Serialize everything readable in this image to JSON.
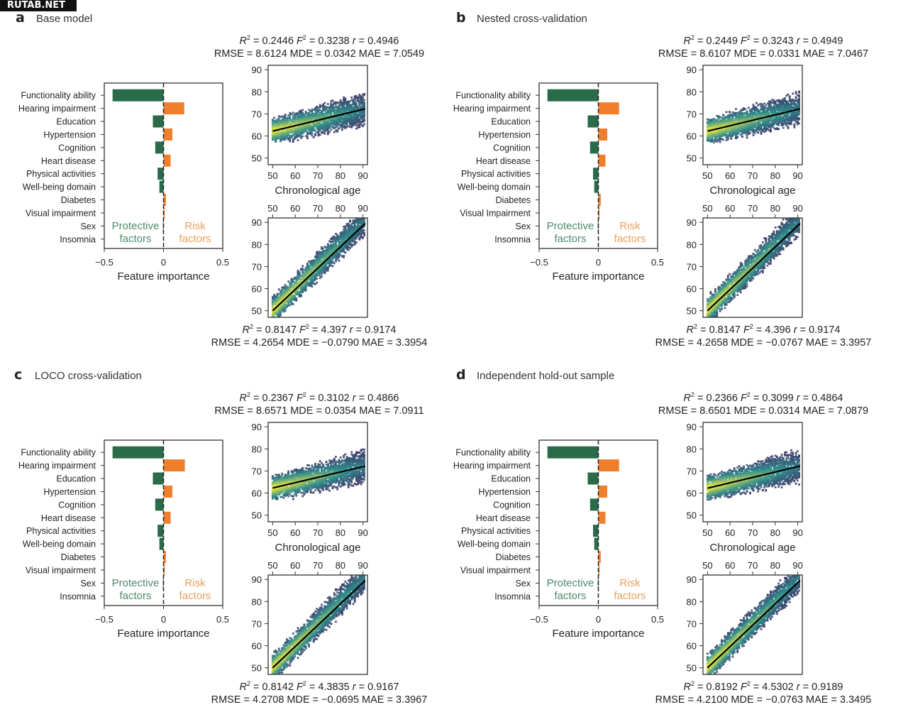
{
  "watermark": "RUTAB.NET",
  "chart_data": [
    {
      "id": "a",
      "letter": "a",
      "title": "Base model",
      "type": "bar",
      "features": [
        "Functionality ability",
        "Hearing impairment",
        "Education",
        "Hypertension",
        "Cognition",
        "Heart disease",
        "Physical activities",
        "Well-being domain",
        "Diabetes",
        "Visual impairment",
        "Sex",
        "Insomnia"
      ],
      "values": [
        -0.43,
        0.175,
        -0.09,
        0.075,
        -0.07,
        0.06,
        -0.05,
        -0.035,
        0.02,
        0.01,
        -0.005,
        0.0
      ],
      "xlim": [
        -0.5,
        0.5
      ],
      "xticks": [
        "−0.5",
        "0",
        "0.5"
      ],
      "xlabel": "Feature importance",
      "annotations": {
        "protective": [
          "Protective",
          "factors"
        ],
        "risk": [
          "Risk",
          "factors"
        ]
      },
      "scatter_top": {
        "type": "scatter",
        "xlabel": "Chronological age",
        "xlim": [
          48,
          92
        ],
        "ylim": [
          47,
          92
        ],
        "xticks": [
          50,
          60,
          70,
          80,
          90
        ],
        "yticks": [
          50,
          60,
          70,
          80,
          90
        ],
        "fit_line": {
          "x": [
            50,
            91
          ],
          "y": [
            62.2,
            72.3
          ]
        },
        "stats_line1": {
          "R2": "0.2446",
          "F2": "0.3238",
          "r": "0.4946"
        },
        "stats_line2": {
          "RMSE": "8.6124",
          "MDE": "0.0342",
          "MAE": "7.0549"
        }
      },
      "scatter_bottom": {
        "type": "scatter",
        "xlim": [
          48,
          92
        ],
        "ylim": [
          47,
          92
        ],
        "xticks": [
          50,
          60,
          70,
          80,
          90
        ],
        "yticks": [
          50,
          60,
          70,
          80,
          90
        ],
        "fit_line": {
          "x": [
            50,
            91
          ],
          "y": [
            50,
            89.5
          ]
        },
        "stats_line1": {
          "R2": "0.8147",
          "F2": "4.397",
          "r": "0.9174"
        },
        "stats_line2": {
          "RMSE": "4.2654",
          "MDE": "−0.0790",
          "MAE": "3.3954"
        }
      }
    },
    {
      "id": "b",
      "letter": "b",
      "title": "Nested cross-validation",
      "type": "bar",
      "features": [
        "Functionality ability",
        "Hearing impairment",
        "Education",
        "Hypertension",
        "Cognition",
        "Heart disease",
        "Physical activities",
        "Well-being domain",
        "Diabetes",
        "Visual Impairment",
        "Sex",
        "Insomnia"
      ],
      "values": [
        -0.43,
        0.175,
        -0.09,
        0.075,
        -0.07,
        0.06,
        -0.045,
        -0.035,
        0.02,
        0.01,
        -0.005,
        0.0
      ],
      "xlim": [
        -0.5,
        0.5
      ],
      "xticks": [
        "−0.5",
        "0",
        "0.5"
      ],
      "xlabel": "Feature importance",
      "annotations": {
        "protective": [
          "Protective",
          "factors"
        ],
        "risk": [
          "Risk",
          "factors"
        ]
      },
      "scatter_top": {
        "type": "scatter",
        "xlabel": "Chronological age",
        "xlim": [
          48,
          92
        ],
        "ylim": [
          47,
          92
        ],
        "xticks": [
          50,
          60,
          70,
          80,
          90
        ],
        "yticks": [
          50,
          60,
          70,
          80,
          90
        ],
        "fit_line": {
          "x": [
            50,
            91
          ],
          "y": [
            62.2,
            72.3
          ]
        },
        "stats_line1": {
          "R2": "0.2449",
          "F2": "0.3243",
          "r": "0.4949"
        },
        "stats_line2": {
          "RMSE": "8.6107",
          "MDE": "0.0331",
          "MAE": "7.0467"
        }
      },
      "scatter_bottom": {
        "type": "scatter",
        "xlim": [
          48,
          92
        ],
        "ylim": [
          47,
          92
        ],
        "xticks": [
          50,
          60,
          70,
          80,
          90
        ],
        "yticks": [
          50,
          60,
          70,
          80,
          90
        ],
        "fit_line": {
          "x": [
            50,
            91
          ],
          "y": [
            50,
            89.5
          ]
        },
        "stats_line1": {
          "R2": "0.8147",
          "F2": "4.396",
          "r": "0.9174"
        },
        "stats_line2": {
          "RMSE": "4.2658",
          "MDE": "−0.0767",
          "MAE": "3.3957"
        }
      }
    },
    {
      "id": "c",
      "letter": "c",
      "title": "LOCO cross-validation",
      "type": "bar",
      "features": [
        "Functionality ability",
        "Hearing impairment",
        "Education",
        "Hypertension",
        "Cognition",
        "Heart disease",
        "Physical activities",
        "Well-being domain",
        "Diabetes",
        "Visual impairment",
        "Sex",
        "Insomnia"
      ],
      "values": [
        -0.43,
        0.18,
        -0.09,
        0.075,
        -0.07,
        0.06,
        -0.05,
        -0.035,
        0.02,
        0.01,
        -0.005,
        0.0
      ],
      "xlim": [
        -0.5,
        0.5
      ],
      "xticks": [
        "−0.5",
        "0",
        "0.5"
      ],
      "xlabel": "Feature importance",
      "annotations": {
        "protective": [
          "Protective",
          "factors"
        ],
        "risk": [
          "Risk",
          "factors"
        ]
      },
      "scatter_top": {
        "type": "scatter",
        "xlabel": "Chronological age",
        "xlim": [
          48,
          92
        ],
        "ylim": [
          47,
          92
        ],
        "xticks": [
          50,
          60,
          70,
          80,
          90
        ],
        "yticks": [
          50,
          60,
          70,
          80,
          90
        ],
        "fit_line": {
          "x": [
            50,
            91
          ],
          "y": [
            62.3,
            72.2
          ]
        },
        "stats_line1": {
          "R2": "0.2367",
          "F2": "0.3102",
          "r": "0.4866"
        },
        "stats_line2": {
          "RMSE": "8.6571",
          "MDE": "0.0354",
          "MAE": "7.0911"
        }
      },
      "scatter_bottom": {
        "type": "scatter",
        "xlim": [
          48,
          92
        ],
        "ylim": [
          47,
          92
        ],
        "xticks": [
          50,
          60,
          70,
          80,
          90
        ],
        "yticks": [
          50,
          60,
          70,
          80,
          90
        ],
        "fit_line": {
          "x": [
            50,
            91
          ],
          "y": [
            50,
            89.5
          ]
        },
        "stats_line1": {
          "R2": "0.8142",
          "F2": "4.3835",
          "r": "0.9167"
        },
        "stats_line2": {
          "RMSE": "4.2708",
          "MDE": "−0.0695",
          "MAE": "3.3967"
        }
      }
    },
    {
      "id": "d",
      "letter": "d",
      "title": "Independent hold-out sample",
      "type": "bar",
      "features": [
        "Functionality ability",
        "Hearing impairment",
        "Education",
        "Hypertension",
        "Cognition",
        "Heart disease",
        "Physical activities",
        "Well-being domain",
        "Diabetes",
        "Visual impairment",
        "Sex",
        "Insomnia"
      ],
      "values": [
        -0.43,
        0.175,
        -0.09,
        0.075,
        -0.07,
        0.06,
        -0.045,
        -0.035,
        0.02,
        0.01,
        -0.005,
        0.0
      ],
      "xlim": [
        -0.5,
        0.5
      ],
      "xticks": [
        "−0.5",
        "0",
        "0.5"
      ],
      "xlabel": "Feature importance",
      "annotations": {
        "protective": [
          "Protective",
          "factors"
        ],
        "risk": [
          "Risk",
          "factors"
        ]
      },
      "scatter_top": {
        "type": "scatter",
        "xlabel": "Chronological age",
        "xlim": [
          48,
          92
        ],
        "ylim": [
          47,
          92
        ],
        "xticks": [
          50,
          60,
          70,
          80,
          90
        ],
        "yticks": [
          50,
          60,
          70,
          80,
          90
        ],
        "fit_line": {
          "x": [
            50,
            91
          ],
          "y": [
            62.2,
            72.2
          ]
        },
        "stats_line1": {
          "R2": "0.2366",
          "F2": "0.3099",
          "r": "0.4864"
        },
        "stats_line2": {
          "RMSE": "8.6501",
          "MDE": "0.0314",
          "MAE": "7.0879"
        }
      },
      "scatter_bottom": {
        "type": "scatter",
        "xlim": [
          48,
          92
        ],
        "ylim": [
          47,
          92
        ],
        "xticks": [
          50,
          60,
          70,
          80,
          90
        ],
        "yticks": [
          50,
          60,
          70,
          80,
          90
        ],
        "fit_line": {
          "x": [
            50,
            91
          ],
          "y": [
            50,
            89.5
          ]
        },
        "stats_line1": {
          "R2": "0.8192",
          "F2": "4.5302",
          "r": "0.9189"
        },
        "stats_line2": {
          "RMSE": "4.2100",
          "MDE": "−0.0763",
          "MAE": "3.3495"
        }
      }
    }
  ],
  "colors": {
    "protective": "#2a6b4a",
    "risk": "#f07f2d",
    "protective_text": "#4d8a6c",
    "risk_text": "#e9a05e",
    "fit_line": "#000000",
    "density_low": "#3b1f5c",
    "density_mid": "#2f8c8c",
    "density_high": "#d8e04a"
  }
}
